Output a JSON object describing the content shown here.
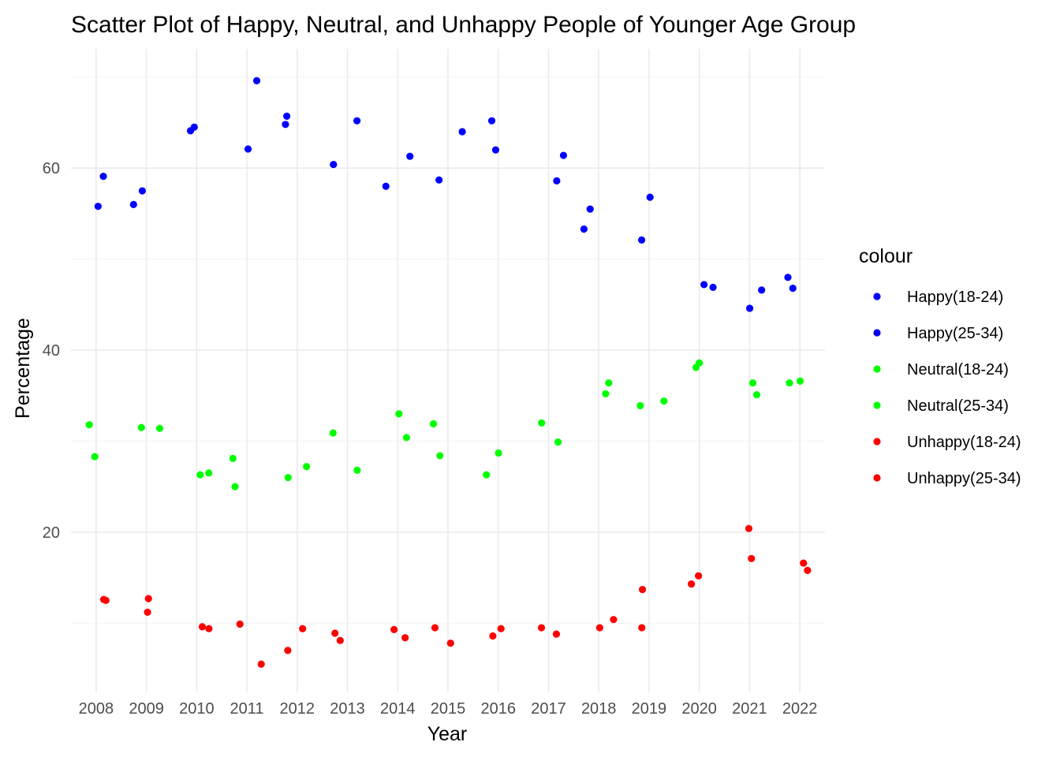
{
  "chart_data": {
    "type": "scatter",
    "title": "Scatter Plot of Happy, Neutral, and Unhappy People of Younger Age Group",
    "xlabel": "Year",
    "ylabel": "Percentage",
    "categories": [
      "2008",
      "2009",
      "2010",
      "2011",
      "2012",
      "2013",
      "2014",
      "2015",
      "2016",
      "2017",
      "2018",
      "2019",
      "2020",
      "2021",
      "2022"
    ],
    "y_ticks": [
      20,
      40,
      60
    ],
    "ylim": [
      2.4,
      73.1
    ],
    "grid": true,
    "jitter": true,
    "legend_title": "colour",
    "legend_position": "right",
    "series": [
      {
        "name": "Happy(18-24)",
        "color": "#0000ff",
        "points": [
          {
            "x": "2008",
            "y": 59.1
          },
          {
            "x": "2009",
            "y": 56.0
          },
          {
            "x": "2010",
            "y": 64.5
          },
          {
            "x": "2011",
            "y": 69.6
          },
          {
            "x": "2012",
            "y": 65.7
          },
          {
            "x": "2013",
            "y": 65.2
          },
          {
            "x": "2014",
            "y": 58.0
          },
          {
            "x": "2015",
            "y": 64.0
          },
          {
            "x": "2016",
            "y": 65.2
          },
          {
            "x": "2017",
            "y": 58.6
          },
          {
            "x": "2018",
            "y": 53.3
          },
          {
            "x": "2019",
            "y": 52.1
          },
          {
            "x": "2020",
            "y": 47.2
          },
          {
            "x": "2021",
            "y": 44.6
          },
          {
            "x": "2022",
            "y": 48.0
          }
        ]
      },
      {
        "name": "Happy(25-34)",
        "color": "#0000ff",
        "points": [
          {
            "x": "2008",
            "y": 55.8
          },
          {
            "x": "2009",
            "y": 57.5
          },
          {
            "x": "2010",
            "y": 64.1
          },
          {
            "x": "2011",
            "y": 62.1
          },
          {
            "x": "2012",
            "y": 64.8
          },
          {
            "x": "2013",
            "y": 60.4
          },
          {
            "x": "2014",
            "y": 61.3
          },
          {
            "x": "2015",
            "y": 58.7
          },
          {
            "x": "2016",
            "y": 62.0
          },
          {
            "x": "2017",
            "y": 61.4
          },
          {
            "x": "2018",
            "y": 55.5
          },
          {
            "x": "2019",
            "y": 56.8
          },
          {
            "x": "2020",
            "y": 46.9
          },
          {
            "x": "2021",
            "y": 46.6
          },
          {
            "x": "2022",
            "y": 46.8
          }
        ]
      },
      {
        "name": "Neutral(18-24)",
        "color": "#00ff00",
        "points": [
          {
            "x": "2008",
            "y": 28.3
          },
          {
            "x": "2009",
            "y": 31.5
          },
          {
            "x": "2010",
            "y": 26.5
          },
          {
            "x": "2011",
            "y": 28.1
          },
          {
            "x": "2012",
            "y": 27.2
          },
          {
            "x": "2013",
            "y": 30.9
          },
          {
            "x": "2014",
            "y": 33.0
          },
          {
            "x": "2015",
            "y": 28.4
          },
          {
            "x": "2016",
            "y": 28.7
          },
          {
            "x": "2017",
            "y": 29.9
          },
          {
            "x": "2018",
            "y": 35.2
          },
          {
            "x": "2019",
            "y": 34.4
          },
          {
            "x": "2020",
            "y": 38.6
          },
          {
            "x": "2021",
            "y": 35.1
          },
          {
            "x": "2022",
            "y": 36.4
          }
        ]
      },
      {
        "name": "Neutral(25-34)",
        "color": "#00ff00",
        "points": [
          {
            "x": "2008",
            "y": 31.8
          },
          {
            "x": "2009",
            "y": 31.4
          },
          {
            "x": "2010",
            "y": 26.3
          },
          {
            "x": "2011",
            "y": 25.0
          },
          {
            "x": "2012",
            "y": 26.0
          },
          {
            "x": "2013",
            "y": 26.8
          },
          {
            "x": "2014",
            "y": 30.4
          },
          {
            "x": "2015",
            "y": 31.9
          },
          {
            "x": "2016",
            "y": 26.3
          },
          {
            "x": "2017",
            "y": 32.0
          },
          {
            "x": "2018",
            "y": 36.4
          },
          {
            "x": "2019",
            "y": 33.9
          },
          {
            "x": "2020",
            "y": 38.1
          },
          {
            "x": "2021",
            "y": 36.4
          },
          {
            "x": "2022",
            "y": 36.6
          }
        ]
      },
      {
        "name": "Unhappy(18-24)",
        "color": "#ff0000",
        "points": [
          {
            "x": "2008",
            "y": 12.5
          },
          {
            "x": "2009",
            "y": 11.2
          },
          {
            "x": "2010",
            "y": 9.4
          },
          {
            "x": "2011",
            "y": 9.9
          },
          {
            "x": "2012",
            "y": 7.0
          },
          {
            "x": "2013",
            "y": 8.9
          },
          {
            "x": "2014",
            "y": 9.3
          },
          {
            "x": "2015",
            "y": 9.5
          },
          {
            "x": "2016",
            "y": 9.4
          },
          {
            "x": "2017",
            "y": 9.5
          },
          {
            "x": "2018",
            "y": 10.4
          },
          {
            "x": "2019",
            "y": 13.7
          },
          {
            "x": "2020",
            "y": 15.2
          },
          {
            "x": "2021",
            "y": 20.4
          },
          {
            "x": "2022",
            "y": 15.8
          }
        ]
      },
      {
        "name": "Unhappy(25-34)",
        "color": "#ff0000",
        "points": [
          {
            "x": "2008",
            "y": 12.6
          },
          {
            "x": "2009",
            "y": 12.7
          },
          {
            "x": "2010",
            "y": 9.6
          },
          {
            "x": "2011",
            "y": 5.5
          },
          {
            "x": "2012",
            "y": 9.4
          },
          {
            "x": "2013",
            "y": 8.1
          },
          {
            "x": "2014",
            "y": 8.4
          },
          {
            "x": "2015",
            "y": 7.8
          },
          {
            "x": "2016",
            "y": 8.6
          },
          {
            "x": "2017",
            "y": 8.8
          },
          {
            "x": "2018",
            "y": 9.5
          },
          {
            "x": "2019",
            "y": 9.5
          },
          {
            "x": "2020",
            "y": 14.3
          },
          {
            "x": "2021",
            "y": 17.1
          },
          {
            "x": "2022",
            "y": 16.6
          }
        ]
      }
    ]
  }
}
